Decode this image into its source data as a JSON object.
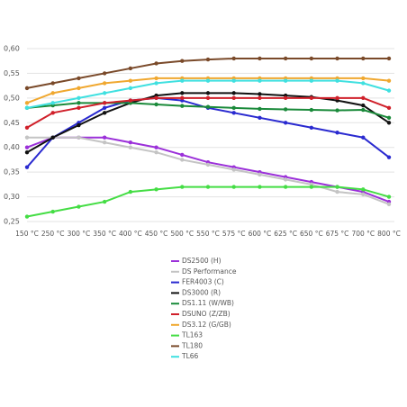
{
  "chart_data": {
    "type": "line",
    "categories": [
      "150 °C",
      "250 °C",
      "300 °C",
      "350 °C",
      "400 °C",
      "450 °C",
      "500 °C",
      "550 °C",
      "575 °C",
      "600 °C",
      "625 °C",
      "650 °C",
      "675 °C",
      "700 °C",
      "800 °C"
    ],
    "ylim": [
      0.25,
      0.6
    ],
    "yticks": [
      {
        "value": 0.25,
        "label": "0,25"
      },
      {
        "value": 0.3,
        "label": "0,30"
      },
      {
        "value": 0.35,
        "label": "0,35"
      },
      {
        "value": 0.4,
        "label": "0,40"
      },
      {
        "value": 0.45,
        "label": "0,45"
      },
      {
        "value": 0.5,
        "label": "0,50"
      },
      {
        "value": 0.55,
        "label": "0,55"
      },
      {
        "value": 0.6,
        "label": "0,60"
      }
    ],
    "grid": true,
    "series": [
      {
        "name": "DS2500 (H)",
        "color": "#9b30d9",
        "values": [
          0.4,
          0.42,
          0.42,
          0.42,
          0.41,
          0.4,
          0.385,
          0.37,
          0.36,
          0.35,
          0.34,
          0.33,
          0.32,
          0.31,
          0.29
        ]
      },
      {
        "name": "DS Performance",
        "color": "#c4c4c4",
        "values": [
          0.42,
          0.42,
          0.42,
          0.41,
          0.4,
          0.39,
          0.375,
          0.365,
          0.355,
          0.345,
          0.335,
          0.325,
          0.31,
          0.305,
          0.285
        ]
      },
      {
        "name": "FER4003 (C)",
        "color": "#2a2ad0",
        "values": [
          0.36,
          0.42,
          0.45,
          0.48,
          0.495,
          0.5,
          0.495,
          0.48,
          0.47,
          0.46,
          0.45,
          0.44,
          0.43,
          0.42,
          0.38
        ]
      },
      {
        "name": "DS3000 (R)",
        "color": "#111111",
        "values": [
          0.39,
          0.42,
          0.445,
          0.47,
          0.49,
          0.505,
          0.51,
          0.51,
          0.51,
          0.508,
          0.505,
          0.502,
          0.495,
          0.485,
          0.45
        ]
      },
      {
        "name": "DS1.11 (W/WB)",
        "color": "#1a8a3a",
        "values": [
          0.48,
          0.485,
          0.49,
          0.49,
          0.49,
          0.487,
          0.484,
          0.482,
          0.48,
          0.478,
          0.477,
          0.476,
          0.475,
          0.476,
          0.46
        ]
      },
      {
        "name": "DSUNO (Z/ZB)",
        "color": "#d0202a",
        "values": [
          0.44,
          0.47,
          0.48,
          0.49,
          0.495,
          0.5,
          0.5,
          0.5,
          0.5,
          0.5,
          0.5,
          0.5,
          0.5,
          0.5,
          0.48
        ]
      },
      {
        "name": "DS3.12 (G/GB)",
        "color": "#f0a830",
        "values": [
          0.49,
          0.51,
          0.52,
          0.53,
          0.535,
          0.54,
          0.54,
          0.54,
          0.54,
          0.54,
          0.54,
          0.54,
          0.54,
          0.54,
          0.535
        ]
      },
      {
        "name": "TL163",
        "color": "#44dd44",
        "values": [
          0.26,
          0.27,
          0.28,
          0.29,
          0.31,
          0.315,
          0.32,
          0.32,
          0.32,
          0.32,
          0.32,
          0.32,
          0.32,
          0.315,
          0.3
        ]
      },
      {
        "name": "TL180",
        "color": "#7a4a2a",
        "values": [
          0.52,
          0.53,
          0.54,
          0.55,
          0.56,
          0.57,
          0.575,
          0.578,
          0.58,
          0.58,
          0.58,
          0.58,
          0.58,
          0.58,
          0.58
        ]
      },
      {
        "name": "TL66",
        "color": "#40e0e0",
        "values": [
          0.48,
          0.49,
          0.5,
          0.51,
          0.52,
          0.53,
          0.535,
          0.535,
          0.535,
          0.535,
          0.535,
          0.535,
          0.535,
          0.53,
          0.515
        ]
      }
    ]
  }
}
